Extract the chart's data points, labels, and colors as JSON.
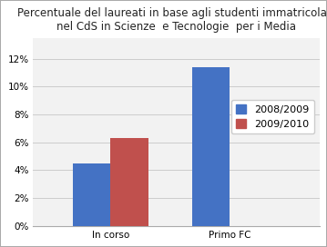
{
  "title_line1": "Percentuale del laureati in base agli studenti immatricolati",
  "title_line2": "nel CdS in Scienze  e Tecnologie  per i Media",
  "categories": [
    "In corso",
    "Primo FC"
  ],
  "series": [
    {
      "label": "2008/2009",
      "values": [
        0.045,
        0.114
      ],
      "color": "#4472C4"
    },
    {
      "label": "2009/2010",
      "values": [
        0.063,
        null
      ],
      "color": "#C0504D"
    }
  ],
  "ylim": [
    0,
    0.135
  ],
  "yticks": [
    0.0,
    0.02,
    0.04,
    0.06,
    0.08,
    0.1,
    0.12
  ],
  "ytick_labels": [
    "0%",
    "2%",
    "4%",
    "6%",
    "8%",
    "10%",
    "12%"
  ],
  "bar_width": 0.32,
  "background_color": "#FFFFFF",
  "plot_bg_color": "#F2F2F2",
  "border_color": "#AAAAAA",
  "title_fontsize": 8.5,
  "tick_fontsize": 7.5,
  "legend_fontsize": 8
}
